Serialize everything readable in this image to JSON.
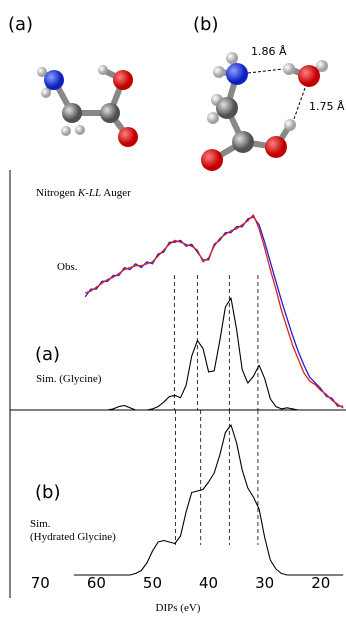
{
  "molecules": {
    "labels": [
      "(a)",
      "(b)"
    ],
    "distances": [
      "1.86 Å",
      "1.75 Å"
    ]
  },
  "chart_data": {
    "type": "line",
    "title_parts": [
      "Nitrogen ",
      "K-LL",
      " Auger"
    ],
    "xlabel": "DIPs (eV)",
    "xlim": [
      75.4,
      15.5
    ],
    "xticks": [
      70,
      60,
      50,
      40,
      30,
      20
    ],
    "x": [
      64,
      63,
      62,
      61,
      60,
      59,
      58,
      57,
      56,
      55,
      54,
      53,
      52,
      51,
      50,
      49,
      48,
      47,
      46,
      45,
      44,
      43,
      42,
      41,
      40,
      39,
      38,
      37,
      36,
      35,
      34,
      33,
      32,
      31,
      30,
      29,
      28,
      27,
      26,
      25,
      24,
      23,
      22,
      21,
      20,
      19,
      18,
      17,
      16
    ],
    "panel_labels": [
      "(a)",
      "(b)"
    ],
    "peak_lines": [
      [
        46.1,
        42.0,
        36.3,
        31.2
      ],
      [
        45.9,
        41.4,
        36.3,
        31.2
      ]
    ],
    "series": [
      {
        "name": "Obs.",
        "color": "#e02020",
        "values": [
          null,
          null,
          60,
          61,
          63,
          65,
          67,
          68,
          70,
          72,
          73,
          74,
          74,
          75,
          76,
          79,
          82,
          85,
          87,
          86,
          85,
          84,
          82,
          76,
          78,
          84,
          88,
          90,
          92,
          93,
          95,
          97,
          100,
          93,
          83,
          72,
          62,
          51,
          42,
          33,
          26,
          19,
          15,
          13,
          10,
          8,
          5,
          3,
          1
        ]
      },
      {
        "color": "#2020d0",
        "values": [
          null,
          null,
          58,
          62,
          62,
          66,
          66,
          69,
          69,
          73,
          72,
          75,
          73,
          76,
          75,
          80,
          81,
          86,
          86,
          87,
          84,
          85,
          81,
          77,
          77,
          85,
          87,
          91,
          91,
          94,
          94,
          98,
          99,
          95,
          86,
          76,
          66,
          56,
          47,
          38,
          30,
          23,
          17,
          14,
          11,
          7,
          6,
          2,
          2
        ]
      },
      {
        "name": [
          "Sim. (Glycine)"
        ],
        "color": "#000000",
        "values": [
          0,
          0,
          0,
          0,
          0,
          0,
          0,
          1,
          3,
          4,
          2,
          0,
          0,
          0,
          1,
          3,
          7,
          12,
          13,
          11,
          22,
          48,
          62,
          55,
          34,
          35,
          62,
          92,
          100,
          72,
          36,
          24,
          30,
          40,
          28,
          10,
          3,
          1,
          2,
          1,
          0,
          0,
          0,
          0,
          0,
          0,
          0,
          0,
          0
        ]
      },
      {
        "name": [
          "Sim.",
          "(Hydrated Glycine)"
        ],
        "color": "#000000",
        "values": [
          0,
          0,
          0,
          0,
          0,
          0,
          0,
          0,
          0,
          0,
          0,
          1,
          3,
          8,
          16,
          22,
          23,
          22,
          21,
          26,
          42,
          55,
          56,
          57,
          62,
          68,
          80,
          95,
          100,
          88,
          70,
          58,
          52,
          44,
          25,
          10,
          4,
          1,
          0,
          0,
          0,
          0,
          0,
          0,
          0,
          0,
          0,
          0,
          0
        ]
      }
    ]
  }
}
